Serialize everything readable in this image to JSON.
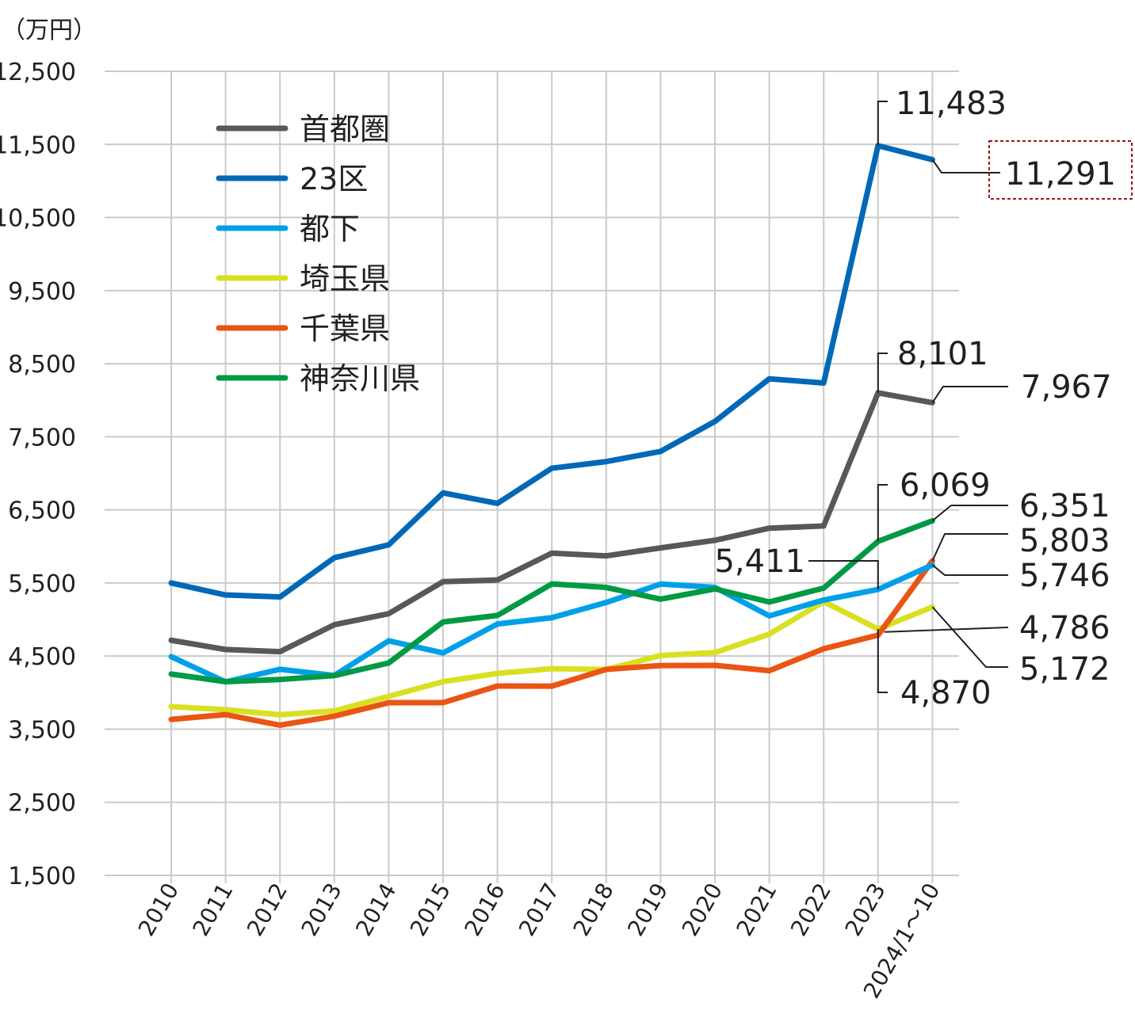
{
  "chart_data": {
    "type": "line",
    "unit_label": "（万円）",
    "categories": [
      "2010",
      "2011",
      "2012",
      "2013",
      "2014",
      "2015",
      "2016",
      "2017",
      "2018",
      "2019",
      "2020",
      "2021",
      "2022",
      "2023",
      "2024/1～10"
    ],
    "yticks": [
      "12,500",
      "11,500",
      "10,500",
      "9,500",
      "8,500",
      "7,500",
      "6,500",
      "5,500",
      "4,500",
      "3,500",
      "2,500",
      "1,500"
    ],
    "ylim": [
      1500,
      12500
    ],
    "grid": true,
    "legend_position": "top-left",
    "series": [
      {
        "name": "首都圏",
        "color": "#595757",
        "values": [
          4716,
          4590,
          4560,
          4929,
          5080,
          5518,
          5541,
          5908,
          5871,
          5980,
          6084,
          6250,
          6280,
          8101,
          7967
        ]
      },
      {
        "name": "23区",
        "color": "#0068b7",
        "values": [
          5500,
          5336,
          5309,
          5845,
          6022,
          6732,
          6589,
          7070,
          7160,
          7300,
          7710,
          8293,
          8236,
          11483,
          11291
        ]
      },
      {
        "name": "都下",
        "color": "#00a0e9",
        "values": [
          4492,
          4146,
          4319,
          4234,
          4709,
          4543,
          4939,
          5025,
          5233,
          5485,
          5440,
          5050,
          5267,
          5411,
          5746
        ]
      },
      {
        "name": "埼玉県",
        "color": "#d9e021",
        "values": [
          3809,
          3766,
          3697,
          3750,
          3949,
          4150,
          4263,
          4327,
          4316,
          4507,
          4548,
          4801,
          5245,
          4870,
          5172
        ]
      },
      {
        "name": "千葉県",
        "color": "#ea5514",
        "values": [
          3634,
          3699,
          3555,
          3678,
          3862,
          3863,
          4090,
          4089,
          4318,
          4370,
          4373,
          4300,
          4600,
          4786,
          5803
        ]
      },
      {
        "name": "神奈川県",
        "color": "#009944",
        "values": [
          4254,
          4150,
          4180,
          4233,
          4406,
          4967,
          5056,
          5487,
          5439,
          5279,
          5419,
          5240,
          5430,
          6069,
          6351
        ]
      }
    ],
    "annotations": [
      {
        "text": "11,483"
      },
      {
        "text": "11,291"
      },
      {
        "text": "8,101"
      },
      {
        "text": "7,967"
      },
      {
        "text": "6,069"
      },
      {
        "text": "6,351"
      },
      {
        "text": "5,803"
      },
      {
        "text": "5,746"
      },
      {
        "text": "5,411"
      },
      {
        "text": "4,786"
      },
      {
        "text": "5,172"
      },
      {
        "text": "4,870"
      }
    ]
  }
}
